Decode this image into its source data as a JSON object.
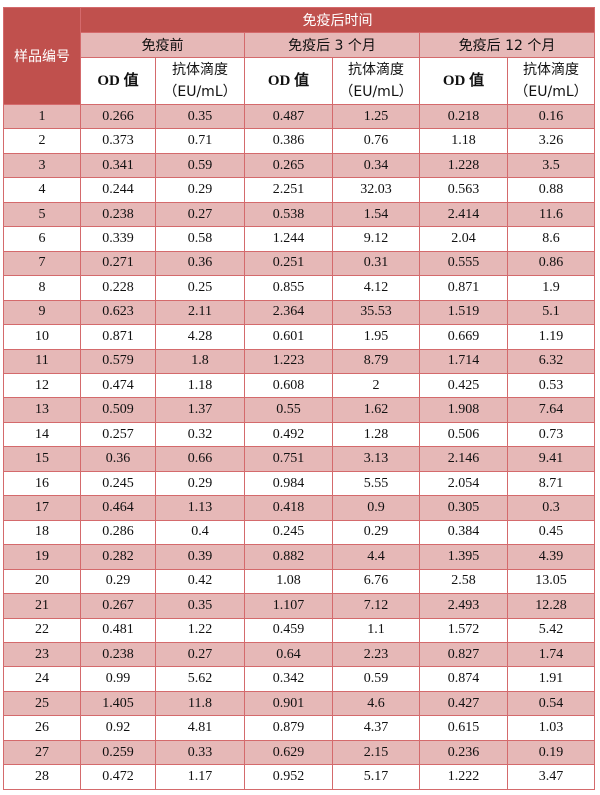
{
  "table": {
    "row_header": "样品编号",
    "group_header": "免疫后时间",
    "periods": [
      "免疫前",
      "免疫后 3 个月",
      "免疫后 12 个月"
    ],
    "od_label": "OD 值",
    "titer_label_line1": "抗体滴度",
    "titer_label_line2": "（EU/mL）",
    "colors": {
      "header": "#c0504d",
      "band": "#e6b8b7",
      "border": "#d46a6c"
    },
    "rows": [
      [
        "1",
        "0.266",
        "0.35",
        "0.487",
        "1.25",
        "0.218",
        "0.16"
      ],
      [
        "2",
        "0.373",
        "0.71",
        "0.386",
        "0.76",
        "1.18",
        "3.26"
      ],
      [
        "3",
        "0.341",
        "0.59",
        "0.265",
        "0.34",
        "1.228",
        "3.5"
      ],
      [
        "4",
        "0.244",
        "0.29",
        "2.251",
        "32.03",
        "0.563",
        "0.88"
      ],
      [
        "5",
        "0.238",
        "0.27",
        "0.538",
        "1.54",
        "2.414",
        "11.6"
      ],
      [
        "6",
        "0.339",
        "0.58",
        "1.244",
        "9.12",
        "2.04",
        "8.6"
      ],
      [
        "7",
        "0.271",
        "0.36",
        "0.251",
        "0.31",
        "0.555",
        "0.86"
      ],
      [
        "8",
        "0.228",
        "0.25",
        "0.855",
        "4.12",
        "0.871",
        "1.9"
      ],
      [
        "9",
        "0.623",
        "2.11",
        "2.364",
        "35.53",
        "1.519",
        "5.1"
      ],
      [
        "10",
        "0.871",
        "4.28",
        "0.601",
        "1.95",
        "0.669",
        "1.19"
      ],
      [
        "11",
        "0.579",
        "1.8",
        "1.223",
        "8.79",
        "1.714",
        "6.32"
      ],
      [
        "12",
        "0.474",
        "1.18",
        "0.608",
        "2",
        "0.425",
        "0.53"
      ],
      [
        "13",
        "0.509",
        "1.37",
        "0.55",
        "1.62",
        "1.908",
        "7.64"
      ],
      [
        "14",
        "0.257",
        "0.32",
        "0.492",
        "1.28",
        "0.506",
        "0.73"
      ],
      [
        "15",
        "0.36",
        "0.66",
        "0.751",
        "3.13",
        "2.146",
        "9.41"
      ],
      [
        "16",
        "0.245",
        "0.29",
        "0.984",
        "5.55",
        "2.054",
        "8.71"
      ],
      [
        "17",
        "0.464",
        "1.13",
        "0.418",
        "0.9",
        "0.305",
        "0.3"
      ],
      [
        "18",
        "0.286",
        "0.4",
        "0.245",
        "0.29",
        "0.384",
        "0.45"
      ],
      [
        "19",
        "0.282",
        "0.39",
        "0.882",
        "4.4",
        "1.395",
        "4.39"
      ],
      [
        "20",
        "0.29",
        "0.42",
        "1.08",
        "6.76",
        "2.58",
        "13.05"
      ],
      [
        "21",
        "0.267",
        "0.35",
        "1.107",
        "7.12",
        "2.493",
        "12.28"
      ],
      [
        "22",
        "0.481",
        "1.22",
        "0.459",
        "1.1",
        "1.572",
        "5.42"
      ],
      [
        "23",
        "0.238",
        "0.27",
        "0.64",
        "2.23",
        "0.827",
        "1.74"
      ],
      [
        "24",
        "0.99",
        "5.62",
        "0.342",
        "0.59",
        "0.874",
        "1.91"
      ],
      [
        "25",
        "1.405",
        "11.8",
        "0.901",
        "4.6",
        "0.427",
        "0.54"
      ],
      [
        "26",
        "0.92",
        "4.81",
        "0.879",
        "4.37",
        "0.615",
        "1.03"
      ],
      [
        "27",
        "0.259",
        "0.33",
        "0.629",
        "2.15",
        "0.236",
        "0.19"
      ],
      [
        "28",
        "0.472",
        "1.17",
        "0.952",
        "5.17",
        "1.222",
        "3.47"
      ]
    ]
  }
}
